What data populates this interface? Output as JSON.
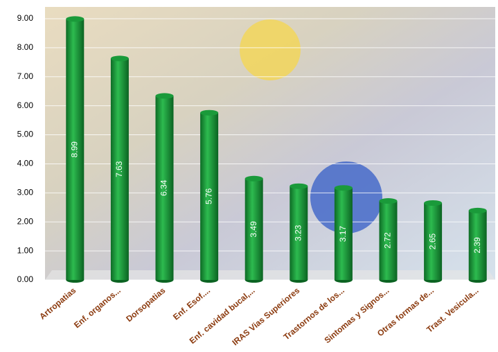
{
  "chart_data": {
    "type": "bar",
    "categories": [
      "Artropatias",
      "Enf. organos...",
      "Dorsopatias",
      "Enf. Esof....",
      "Enf. cavidad bucal,...",
      "IRAS Vias Superiores",
      "Trastornos de los...",
      "Sintomas y Signos...",
      "Otras formas de...",
      "Trast. Vesicula..."
    ],
    "values": [
      8.99,
      7.63,
      6.34,
      5.76,
      3.49,
      3.23,
      3.17,
      2.72,
      2.65,
      2.39
    ],
    "color": "#1a9a3a",
    "ylim": [
      0,
      9
    ],
    "yticks": [
      {
        "value": 0,
        "label": "0.00"
      },
      {
        "value": 1,
        "label": "1.00"
      },
      {
        "value": 2,
        "label": "2.00"
      },
      {
        "value": 3,
        "label": "3.00"
      },
      {
        "value": 4,
        "label": "4.00"
      },
      {
        "value": 5,
        "label": "5.00"
      },
      {
        "value": 6,
        "label": "6.00"
      },
      {
        "value": 7,
        "label": "7.00"
      },
      {
        "value": 8,
        "label": "8.00"
      },
      {
        "value": 9,
        "label": "9.00"
      }
    ],
    "grid": true
  }
}
